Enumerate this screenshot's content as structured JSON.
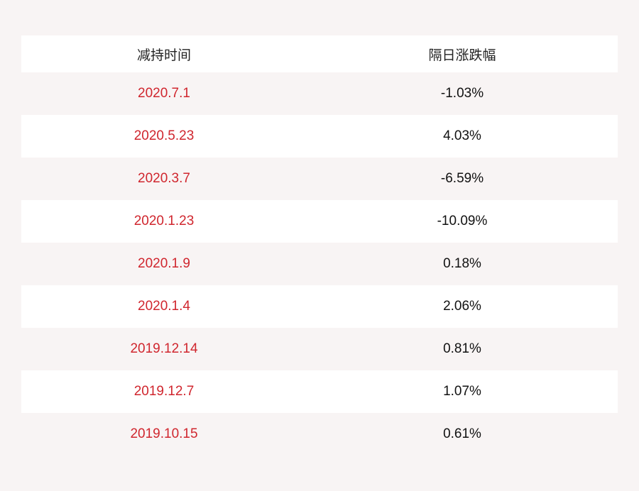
{
  "table": {
    "header": [
      "减持时间",
      "隔日涨跌幅"
    ],
    "rows": [
      [
        "2020.7.1",
        "-1.03%"
      ],
      [
        "2020.5.23",
        "4.03%"
      ],
      [
        "2020.3.7",
        "-6.59%"
      ],
      [
        "2020.1.23",
        "-10.09%"
      ],
      [
        "2020.1.9",
        "0.18%"
      ],
      [
        "2020.1.4",
        "2.06%"
      ],
      [
        "2019.12.14",
        "0.81%"
      ],
      [
        "2019.12.7",
        "1.07%"
      ],
      [
        "2019.10.15",
        "0.61%"
      ]
    ]
  }
}
